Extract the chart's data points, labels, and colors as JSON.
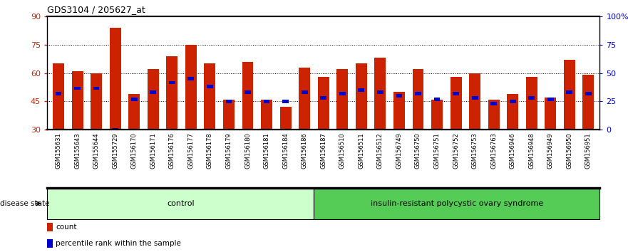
{
  "title": "GDS3104 / 205627_at",
  "samples": [
    "GSM155631",
    "GSM155643",
    "GSM155644",
    "GSM155729",
    "GSM156170",
    "GSM156171",
    "GSM156176",
    "GSM156177",
    "GSM156178",
    "GSM156179",
    "GSM156180",
    "GSM156181",
    "GSM156184",
    "GSM156186",
    "GSM156187",
    "GSM156510",
    "GSM156511",
    "GSM156512",
    "GSM156749",
    "GSM156750",
    "GSM156751",
    "GSM156752",
    "GSM156753",
    "GSM156763",
    "GSM156946",
    "GSM156948",
    "GSM156949",
    "GSM156950",
    "GSM156951"
  ],
  "bar_values": [
    65,
    61,
    60,
    84,
    49,
    62,
    69,
    75,
    65,
    46,
    66,
    46,
    42,
    63,
    58,
    62,
    65,
    68,
    50,
    62,
    46,
    58,
    60,
    46,
    49,
    58,
    47,
    67,
    59
  ],
  "percentile_values": [
    49,
    52,
    52,
    30,
    46,
    50,
    55,
    57,
    53,
    45,
    50,
    45,
    45,
    50,
    47,
    49,
    51,
    50,
    48,
    49,
    46,
    49,
    47,
    44,
    45,
    47,
    46,
    50,
    49
  ],
  "control_count": 14,
  "disease_count": 15,
  "control_label": "control",
  "disease_label": "insulin-resistant polycystic ovary syndrome",
  "disease_state_label": "disease state",
  "bar_color": "#cc2200",
  "percentile_color": "#0000cc",
  "control_bg": "#ccffcc",
  "disease_bg": "#55cc55",
  "label_bg": "#cccccc",
  "ylim_left": [
    30,
    90
  ],
  "yticks_left": [
    30,
    45,
    60,
    75,
    90
  ],
  "ylim_right": [
    0,
    100
  ],
  "yticks_right": [
    0,
    25,
    50,
    75,
    100
  ],
  "ytick_labels_right": [
    "0",
    "25",
    "50",
    "75",
    "100%"
  ],
  "grid_lines": [
    45,
    60,
    75
  ],
  "legend_count_label": "count",
  "legend_percentile_label": "percentile rank within the sample"
}
